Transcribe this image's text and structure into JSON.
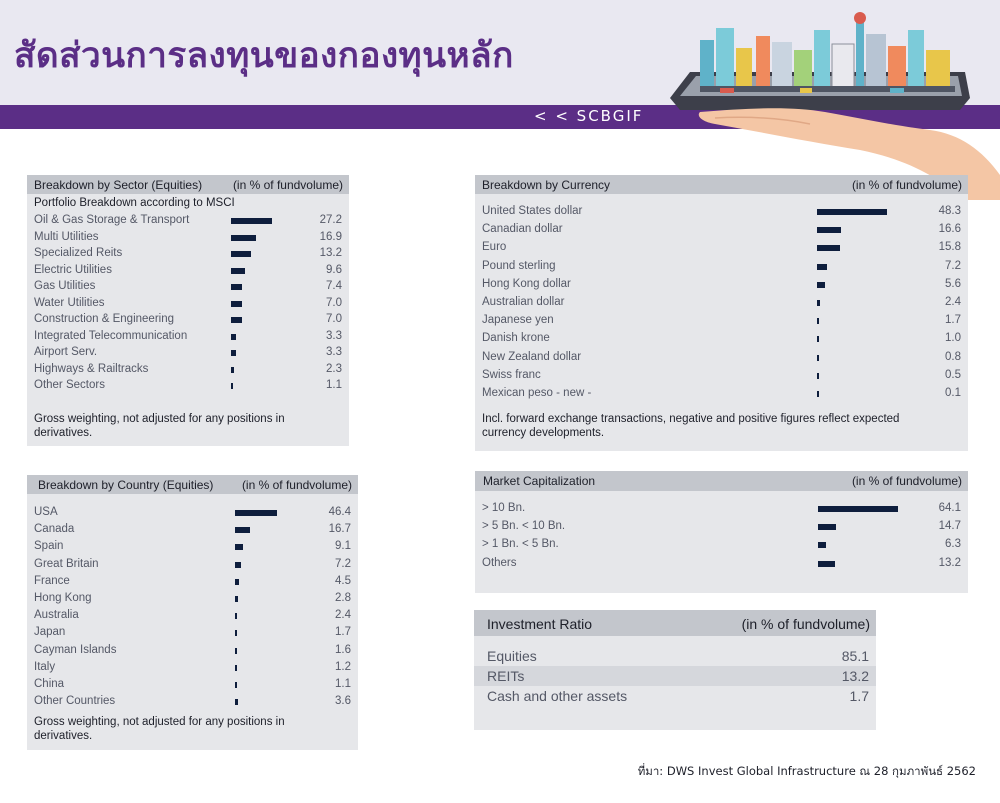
{
  "header": {
    "title": "สัดส่วนการลงทุนของกองทุนหลัก",
    "fund_tag": "< < SCBGIF"
  },
  "sector": {
    "title": "Breakdown by Sector (Equities)",
    "unit": "(in % of fundvolume)",
    "subheading": "Portfolio Breakdown according to MSCI",
    "rows": [
      {
        "label": "Oil & Gas Storage & Transport",
        "value": "27.2",
        "pct": 27.2
      },
      {
        "label": "Multi Utilities",
        "value": "16.9",
        "pct": 16.9
      },
      {
        "label": "Specialized Reits",
        "value": "13.2",
        "pct": 13.2
      },
      {
        "label": "Electric Utilities",
        "value": "9.6",
        "pct": 9.6
      },
      {
        "label": "Gas Utilities",
        "value": "7.4",
        "pct": 7.4
      },
      {
        "label": "Water Utilities",
        "value": "7.0",
        "pct": 7.0
      },
      {
        "label": "Construction & Engineering",
        "value": "7.0",
        "pct": 7.0
      },
      {
        "label": "Integrated Telecommunication",
        "value": "3.3",
        "pct": 3.3
      },
      {
        "label": "Airport Serv.",
        "value": "3.3",
        "pct": 3.3
      },
      {
        "label": "Highways & Railtracks",
        "value": "2.3",
        "pct": 2.3
      },
      {
        "label": "Other Sectors",
        "value": "1.1",
        "pct": 1.1
      }
    ],
    "note_line1": "Gross weighting, not adjusted for any positions in",
    "note_line2": "derivatives."
  },
  "country": {
    "title": "Breakdown by Country (Equities)",
    "unit": "(in % of fundvolume)",
    "rows": [
      {
        "label": "USA",
        "value": "46.4",
        "pct": 46.4
      },
      {
        "label": "Canada",
        "value": "16.7",
        "pct": 16.7
      },
      {
        "label": "Spain",
        "value": "9.1",
        "pct": 9.1
      },
      {
        "label": "Great Britain",
        "value": "7.2",
        "pct": 7.2
      },
      {
        "label": "France",
        "value": "4.5",
        "pct": 4.5
      },
      {
        "label": "Hong Kong",
        "value": "2.8",
        "pct": 2.8
      },
      {
        "label": "Australia",
        "value": "2.4",
        "pct": 2.4
      },
      {
        "label": "Japan",
        "value": "1.7",
        "pct": 1.7
      },
      {
        "label": "Cayman Islands",
        "value": "1.6",
        "pct": 1.6
      },
      {
        "label": "Italy",
        "value": "1.2",
        "pct": 1.2
      },
      {
        "label": "China",
        "value": "1.1",
        "pct": 1.1
      },
      {
        "label": "Other Countries",
        "value": "3.6",
        "pct": 3.6
      }
    ],
    "note_line1": "Gross weighting, not adjusted for any positions in",
    "note_line2": "derivatives."
  },
  "currency": {
    "title": "Breakdown by Currency",
    "unit": "(in % of fundvolume)",
    "rows": [
      {
        "label": "United States dollar",
        "value": "48.3",
        "pct": 48.3
      },
      {
        "label": "Canadian dollar",
        "value": "16.6",
        "pct": 16.6
      },
      {
        "label": "Euro",
        "value": "15.8",
        "pct": 15.8
      },
      {
        "label": "Pound sterling",
        "value": "7.2",
        "pct": 7.2
      },
      {
        "label": "Hong Kong dollar",
        "value": "5.6",
        "pct": 5.6
      },
      {
        "label": "Australian dollar",
        "value": "2.4",
        "pct": 2.4
      },
      {
        "label": "Japanese yen",
        "value": "1.7",
        "pct": 1.7
      },
      {
        "label": "Danish krone",
        "value": "1.0",
        "pct": 1.0
      },
      {
        "label": "New Zealand dollar",
        "value": "0.8",
        "pct": 0.8
      },
      {
        "label": "Swiss franc",
        "value": "0.5",
        "pct": 0.5
      },
      {
        "label": "Mexican peso - new -",
        "value": "0.1",
        "pct": 0.1
      }
    ],
    "note_line1": "Incl. forward exchange transactions, negative and positive figures reflect expected",
    "note_line2": "currency developments."
  },
  "market_cap": {
    "title": "Market Capitalization",
    "unit": "(in % of fundvolume)",
    "rows": [
      {
        "label": "> 10 Bn.",
        "value": "64.1",
        "pct": 64.1
      },
      {
        "label": "> 5 Bn. < 10 Bn.",
        "value": "14.7",
        "pct": 14.7
      },
      {
        "label": "> 1 Bn. < 5 Bn.",
        "value": "6.3",
        "pct": 6.3
      },
      {
        "label": "Others",
        "value": "13.2",
        "pct": 13.2
      }
    ]
  },
  "investment_ratio": {
    "title": "Investment Ratio",
    "unit": "(in % of fundvolume)",
    "rows": [
      {
        "label": "Equities",
        "value": "85.1"
      },
      {
        "label": "REITs",
        "value": "13.2"
      },
      {
        "label": "Cash and other assets",
        "value": "1.7"
      }
    ]
  },
  "source": "ที่มา: DWS Invest Global Infrastructure ณ 28 กุมภาพันธ์ 2562",
  "colors": {
    "brand_purple": "#5b2e86",
    "bar": "#0e1e3d",
    "panel_bg": "#e6e7ea",
    "panel_head": "#c3c6cc"
  }
}
